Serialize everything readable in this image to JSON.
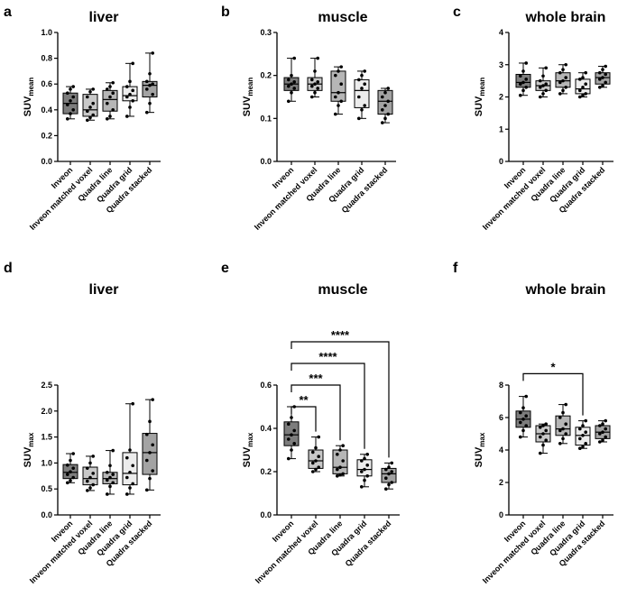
{
  "figure": {
    "categories": [
      "Inveon",
      "Inveon matched voxel",
      "Quadra line",
      "Quadra grid",
      "Quadra stacked"
    ],
    "box_colors": [
      "#7d7d7d",
      "#c8c8c8",
      "#b6b6b6",
      "#ececec",
      "#a3a3a3"
    ]
  },
  "chart_data": [
    {
      "type": "box",
      "panel": "a",
      "title": "liver",
      "ylabel_main": "SUV",
      "ylabel_sub": "mean",
      "ylim": [
        0,
        1.0
      ],
      "yticks": [
        0.0,
        0.2,
        0.4,
        0.6,
        0.8,
        1.0
      ],
      "ytick_labels": [
        "0.0",
        "0.2",
        "0.4",
        "0.6",
        "0.8",
        "1.0"
      ],
      "boxes": [
        {
          "min": 0.33,
          "q1": 0.37,
          "median": 0.45,
          "q3": 0.53,
          "max": 0.58,
          "points": [
            0.33,
            0.37,
            0.4,
            0.44,
            0.47,
            0.5,
            0.53,
            0.56,
            0.58
          ]
        },
        {
          "min": 0.32,
          "q1": 0.35,
          "median": 0.4,
          "q3": 0.52,
          "max": 0.56,
          "points": [
            0.32,
            0.34,
            0.36,
            0.39,
            0.42,
            0.45,
            0.5,
            0.54,
            0.56
          ]
        },
        {
          "min": 0.33,
          "q1": 0.39,
          "median": 0.48,
          "q3": 0.55,
          "max": 0.61,
          "points": [
            0.33,
            0.35,
            0.4,
            0.45,
            0.5,
            0.53,
            0.56,
            0.58,
            0.61
          ]
        },
        {
          "min": 0.35,
          "q1": 0.47,
          "median": 0.51,
          "q3": 0.58,
          "max": 0.76,
          "points": [
            0.35,
            0.42,
            0.47,
            0.5,
            0.52,
            0.55,
            0.58,
            0.62,
            0.76
          ]
        },
        {
          "min": 0.38,
          "q1": 0.5,
          "median": 0.59,
          "q3": 0.62,
          "max": 0.84,
          "points": [
            0.38,
            0.45,
            0.52,
            0.56,
            0.59,
            0.6,
            0.62,
            0.68,
            0.84
          ]
        }
      ],
      "significance": []
    },
    {
      "type": "box",
      "panel": "b",
      "title": "muscle",
      "ylabel_main": "SUV",
      "ylabel_sub": "mean",
      "ylim": [
        0,
        0.3
      ],
      "yticks": [
        0.0,
        0.1,
        0.2,
        0.3
      ],
      "ytick_labels": [
        "0.0",
        "0.1",
        "0.2",
        "0.3"
      ],
      "boxes": [
        {
          "min": 0.14,
          "q1": 0.165,
          "median": 0.18,
          "q3": 0.195,
          "max": 0.24,
          "points": [
            0.14,
            0.16,
            0.17,
            0.175,
            0.18,
            0.185,
            0.19,
            0.2,
            0.24
          ]
        },
        {
          "min": 0.15,
          "q1": 0.165,
          "median": 0.18,
          "q3": 0.195,
          "max": 0.24,
          "points": [
            0.15,
            0.16,
            0.17,
            0.175,
            0.18,
            0.185,
            0.19,
            0.21,
            0.24
          ]
        },
        {
          "min": 0.11,
          "q1": 0.14,
          "median": 0.16,
          "q3": 0.21,
          "max": 0.22,
          "points": [
            0.11,
            0.13,
            0.14,
            0.15,
            0.16,
            0.18,
            0.2,
            0.21,
            0.22
          ]
        },
        {
          "min": 0.1,
          "q1": 0.125,
          "median": 0.165,
          "q3": 0.19,
          "max": 0.21,
          "points": [
            0.1,
            0.12,
            0.13,
            0.15,
            0.17,
            0.18,
            0.19,
            0.2,
            0.21
          ]
        },
        {
          "min": 0.09,
          "q1": 0.11,
          "median": 0.14,
          "q3": 0.165,
          "max": 0.17,
          "points": [
            0.09,
            0.1,
            0.11,
            0.12,
            0.13,
            0.14,
            0.15,
            0.16,
            0.17
          ]
        }
      ],
      "significance": []
    },
    {
      "type": "box",
      "panel": "c",
      "title": "whole brain",
      "ylabel_main": "SUV",
      "ylabel_sub": "mean",
      "ylim": [
        0,
        4
      ],
      "yticks": [
        0,
        1,
        2,
        3,
        4
      ],
      "ytick_labels": [
        "0",
        "1",
        "2",
        "3",
        "4"
      ],
      "boxes": [
        {
          "min": 2.05,
          "q1": 2.3,
          "median": 2.45,
          "q3": 2.7,
          "max": 3.05,
          "points": [
            2.05,
            2.2,
            2.3,
            2.4,
            2.45,
            2.55,
            2.65,
            2.8,
            3.05
          ]
        },
        {
          "min": 2.0,
          "q1": 2.2,
          "median": 2.35,
          "q3": 2.5,
          "max": 2.9,
          "points": [
            2.0,
            2.1,
            2.2,
            2.3,
            2.35,
            2.4,
            2.5,
            2.65,
            2.9
          ]
        },
        {
          "min": 2.1,
          "q1": 2.3,
          "median": 2.5,
          "q3": 2.75,
          "max": 3.0,
          "points": [
            2.1,
            2.2,
            2.3,
            2.45,
            2.5,
            2.6,
            2.75,
            2.85,
            3.0
          ]
        },
        {
          "min": 2.0,
          "q1": 2.1,
          "median": 2.25,
          "q3": 2.55,
          "max": 2.75,
          "points": [
            2.0,
            2.05,
            2.1,
            2.2,
            2.3,
            2.4,
            2.55,
            2.6,
            2.75
          ]
        },
        {
          "min": 2.3,
          "q1": 2.4,
          "median": 2.6,
          "q3": 2.75,
          "max": 2.95,
          "points": [
            2.3,
            2.35,
            2.45,
            2.55,
            2.6,
            2.7,
            2.75,
            2.85,
            2.95
          ]
        }
      ],
      "significance": []
    },
    {
      "type": "box",
      "panel": "d",
      "title": "liver",
      "ylabel_main": "SUV",
      "ylabel_sub": "max",
      "ylim": [
        0,
        2.5
      ],
      "yticks": [
        0.0,
        0.5,
        1.0,
        1.5,
        2.0,
        2.5
      ],
      "ytick_labels": [
        "0.0",
        "0.5",
        "1.0",
        "1.5",
        "2.0",
        "2.5"
      ],
      "boxes": [
        {
          "min": 0.62,
          "q1": 0.7,
          "median": 0.82,
          "q3": 0.97,
          "max": 1.18,
          "points": [
            0.62,
            0.66,
            0.72,
            0.78,
            0.83,
            0.9,
            0.96,
            1.05,
            1.18
          ]
        },
        {
          "min": 0.47,
          "q1": 0.58,
          "median": 0.7,
          "q3": 0.92,
          "max": 1.13,
          "points": [
            0.47,
            0.52,
            0.58,
            0.65,
            0.72,
            0.8,
            0.9,
            1.0,
            1.13
          ]
        },
        {
          "min": 0.4,
          "q1": 0.6,
          "median": 0.7,
          "q3": 0.82,
          "max": 1.24,
          "points": [
            0.4,
            0.55,
            0.62,
            0.67,
            0.72,
            0.78,
            0.82,
            0.95,
            1.24
          ]
        },
        {
          "min": 0.4,
          "q1": 0.58,
          "median": 0.8,
          "q3": 1.2,
          "max": 2.14,
          "points": [
            0.4,
            0.52,
            0.6,
            0.72,
            0.82,
            0.95,
            1.1,
            1.25,
            2.14
          ]
        },
        {
          "min": 0.48,
          "q1": 0.78,
          "median": 1.2,
          "q3": 1.57,
          "max": 2.22,
          "points": [
            0.48,
            0.7,
            0.85,
            1.05,
            1.2,
            1.35,
            1.55,
            1.8,
            2.22
          ]
        }
      ],
      "significance": []
    },
    {
      "type": "box",
      "panel": "e",
      "title": "muscle",
      "ylabel_main": "SUV",
      "ylabel_sub": "max",
      "ylim": [
        0,
        0.6
      ],
      "yticks": [
        0.0,
        0.2,
        0.4,
        0.6
      ],
      "ytick_labels": [
        "0.0",
        "0.2",
        "0.4",
        "0.6"
      ],
      "boxes": [
        {
          "min": 0.26,
          "q1": 0.32,
          "median": 0.37,
          "q3": 0.43,
          "max": 0.5,
          "points": [
            0.26,
            0.3,
            0.33,
            0.35,
            0.37,
            0.39,
            0.42,
            0.45,
            0.5
          ]
        },
        {
          "min": 0.2,
          "q1": 0.215,
          "median": 0.25,
          "q3": 0.3,
          "max": 0.36,
          "points": [
            0.2,
            0.21,
            0.22,
            0.24,
            0.25,
            0.27,
            0.29,
            0.31,
            0.36
          ]
        },
        {
          "min": 0.18,
          "q1": 0.19,
          "median": 0.22,
          "q3": 0.3,
          "max": 0.32,
          "points": [
            0.18,
            0.185,
            0.19,
            0.21,
            0.22,
            0.25,
            0.28,
            0.3,
            0.32
          ]
        },
        {
          "min": 0.13,
          "q1": 0.18,
          "median": 0.21,
          "q3": 0.255,
          "max": 0.28,
          "points": [
            0.13,
            0.16,
            0.18,
            0.2,
            0.21,
            0.23,
            0.25,
            0.26,
            0.28
          ]
        },
        {
          "min": 0.12,
          "q1": 0.15,
          "median": 0.19,
          "q3": 0.215,
          "max": 0.24,
          "points": [
            0.12,
            0.14,
            0.15,
            0.17,
            0.19,
            0.2,
            0.21,
            0.22,
            0.24
          ]
        }
      ],
      "significance": [
        {
          "from": 0,
          "to": 1,
          "label": "**",
          "y": 0.5
        },
        {
          "from": 0,
          "to": 2,
          "label": "***",
          "y": 0.6
        },
        {
          "from": 0,
          "to": 3,
          "label": "****",
          "y": 0.7
        },
        {
          "from": 0,
          "to": 4,
          "label": "****",
          "y": 0.8
        }
      ]
    },
    {
      "type": "box",
      "panel": "f",
      "title": "whole brain",
      "ylabel_main": "SUV",
      "ylabel_sub": "max",
      "ylim": [
        0,
        8
      ],
      "yticks": [
        0,
        2,
        4,
        6,
        8
      ],
      "ytick_labels": [
        "0",
        "2",
        "4",
        "6",
        "8"
      ],
      "boxes": [
        {
          "min": 4.8,
          "q1": 5.4,
          "median": 5.9,
          "q3": 6.4,
          "max": 7.3,
          "points": [
            4.8,
            5.2,
            5.5,
            5.7,
            5.9,
            6.1,
            6.3,
            6.6,
            7.3
          ]
        },
        {
          "min": 3.8,
          "q1": 4.5,
          "median": 5.0,
          "q3": 5.5,
          "max": 5.6,
          "points": [
            3.8,
            4.3,
            4.6,
            4.8,
            5.0,
            5.2,
            5.4,
            5.5,
            5.6
          ]
        },
        {
          "min": 4.4,
          "q1": 4.9,
          "median": 5.3,
          "q3": 6.1,
          "max": 6.8,
          "points": [
            4.4,
            4.7,
            5.0,
            5.2,
            5.3,
            5.6,
            6.0,
            6.3,
            6.8
          ]
        },
        {
          "min": 4.1,
          "q1": 4.3,
          "median": 4.9,
          "q3": 5.4,
          "max": 5.8,
          "points": [
            4.1,
            4.2,
            4.4,
            4.7,
            4.9,
            5.1,
            5.3,
            5.5,
            5.8
          ]
        },
        {
          "min": 4.5,
          "q1": 4.7,
          "median": 5.1,
          "q3": 5.5,
          "max": 5.8,
          "points": [
            4.5,
            4.6,
            4.8,
            5.0,
            5.1,
            5.3,
            5.5,
            5.6,
            5.8
          ]
        }
      ],
      "significance": [
        {
          "from": 0,
          "to": 3,
          "label": "*",
          "y": 8.7
        }
      ]
    }
  ]
}
